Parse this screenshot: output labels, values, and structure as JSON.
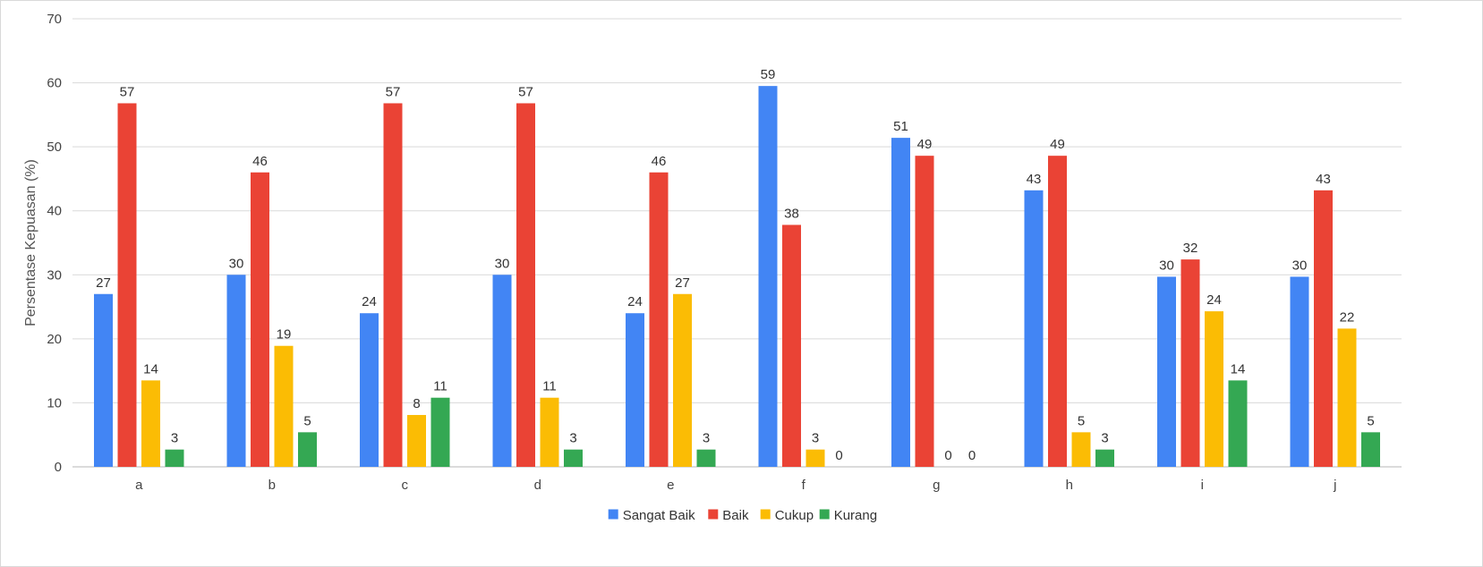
{
  "chart_data": {
    "type": "bar",
    "title": "",
    "xlabel": "",
    "ylabel": "Persentase Kepuasan (%)",
    "ylim": [
      0,
      70
    ],
    "yticks": [
      0,
      10,
      20,
      30,
      40,
      50,
      60,
      70
    ],
    "grid": true,
    "legend_position": "bottom",
    "categories": [
      "a",
      "b",
      "c",
      "d",
      "e",
      "f",
      "g",
      "h",
      "i",
      "j"
    ],
    "series": [
      {
        "name": "Sangat Baik",
        "color": "#4285F4",
        "values": [
          27,
          30,
          24,
          30,
          24,
          59.5,
          51.4,
          43.2,
          29.7,
          29.7
        ],
        "labels": [
          "27",
          "30",
          "24",
          "30",
          "24",
          "59",
          "51",
          "43",
          "30",
          "30"
        ]
      },
      {
        "name": "Baik",
        "color": "#EA4335",
        "values": [
          56.8,
          46,
          56.8,
          56.8,
          46,
          37.8,
          48.6,
          48.6,
          32.4,
          43.2
        ],
        "labels": [
          "57",
          "46",
          "57",
          "57",
          "46",
          "38",
          "49",
          "49",
          "32",
          "43"
        ]
      },
      {
        "name": "Cukup",
        "color": "#FBBC04",
        "values": [
          13.5,
          18.9,
          8.1,
          10.8,
          27,
          2.7,
          0,
          5.4,
          24.3,
          21.6
        ],
        "labels": [
          "14",
          "19",
          "8",
          "11",
          "27",
          "3",
          "0",
          "5",
          "24",
          "22"
        ]
      },
      {
        "name": "Kurang",
        "color": "#34A853",
        "values": [
          2.7,
          5.4,
          10.8,
          2.7,
          2.7,
          0,
          0,
          2.7,
          13.5,
          5.4
        ],
        "labels": [
          "3",
          "5",
          "11",
          "3",
          "3",
          "0",
          "0",
          "3",
          "14",
          "5"
        ]
      }
    ]
  }
}
